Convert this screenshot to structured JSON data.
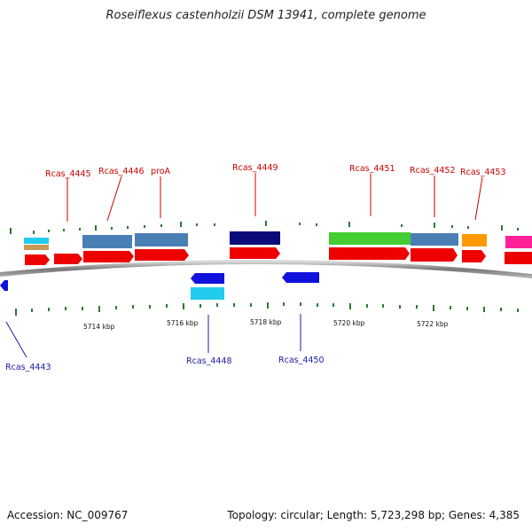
{
  "title": "Roseiflexus castenholzii DSM 13941, complete genome",
  "accession": "Accession: NC_009767",
  "summary": "Topology: circular; Length: 5,723,298 bp; Genes: 4,385",
  "kbp_labels": [
    "5714 kbp",
    "5716 kbp",
    "5718 kbp",
    "5720 kbp",
    "5722 kbp"
  ],
  "gene_labels_top": [
    "Rcas_4445",
    "Rcas_4446",
    "proA",
    "Rcas_4449",
    "Rcas_4451",
    "Rcas_4452",
    "Rcas_4453"
  ],
  "gene_labels_bottom": [
    "Rcas_4443",
    "Rcas_4448",
    "Rcas_4450"
  ],
  "colors": {
    "gene_red": "#ee0000",
    "cds_blue": "#4a7fb5",
    "dark_navy": "#0a0a78",
    "green": "#44cc33",
    "orange": "#ff9900",
    "magenta": "#ff2299",
    "cyan": "#22ccee",
    "tan": "#cc9955",
    "reverse_blue": "#1111dd",
    "label_red": "#cc0000",
    "label_blue": "#1a1aa6"
  }
}
